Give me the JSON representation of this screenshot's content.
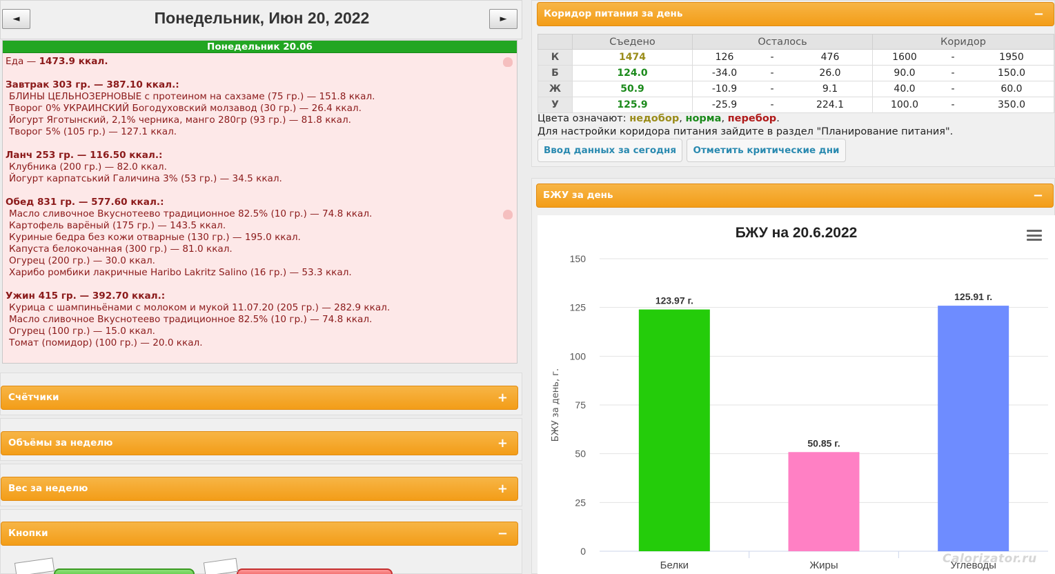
{
  "day": {
    "title": "Понедельник, Июн 20, 2022",
    "prev_label": "◄",
    "next_label": "►"
  },
  "diary": {
    "bar_label": "Понедельник 20.06",
    "lines": [
      {
        "kind": "total",
        "text": "Еда — ",
        "bold_text": "1473.9 ккал."
      },
      {
        "kind": "blank",
        "text": ""
      },
      {
        "kind": "meal",
        "text": "Завтрак 303 гр. — 387.10 ккал.:"
      },
      {
        "kind": "item",
        "text": "БЛИНЫ ЦЕЛЬНОЗЕРНОВЫЕ с протеином на сахзаме (75 гр.) — 151.8 ккал."
      },
      {
        "kind": "item",
        "text": "Творог 0% УКРАИНСКИЙ Богодуховский молзавод (30 гр.) — 26.4 ккал."
      },
      {
        "kind": "item",
        "text": "Йогурт Яготынский, 2,1% черника, манго 280гр (93 гр.) — 81.8 ккал."
      },
      {
        "kind": "item",
        "text": "Творог 5% (105 гр.) — 127.1 ккал."
      },
      {
        "kind": "blank",
        "text": ""
      },
      {
        "kind": "meal",
        "text": "Ланч 253 гр. — 116.50 ккал.:"
      },
      {
        "kind": "item",
        "text": "Клубника (200 гр.) — 82.0 ккал."
      },
      {
        "kind": "item",
        "text": "Йогурт карпатський Галичина 3% (53 гр.) — 34.5 ккал."
      },
      {
        "kind": "blank",
        "text": ""
      },
      {
        "kind": "meal",
        "text": "Обед 831 гр. — 577.60 ккал.:"
      },
      {
        "kind": "item",
        "text": "Масло сливочное Вкуснотеево традиционное 82.5% (10 гр.) — 74.8 ккал."
      },
      {
        "kind": "item",
        "text": "Картофель варёный (175 гр.) — 143.5 ккал."
      },
      {
        "kind": "item",
        "text": "Куриные бедра без кожи отварные (130 гр.) — 195.0 ккал."
      },
      {
        "kind": "item",
        "text": "Капуста белокочанная (300 гр.) — 81.0 ккал."
      },
      {
        "kind": "item",
        "text": "Огурец (200 гр.) — 30.0 ккал."
      },
      {
        "kind": "item",
        "text": "Харибо ромбики лакричные Haribo Lakritz Salino (16 гр.) — 53.3 ккал."
      },
      {
        "kind": "blank",
        "text": ""
      },
      {
        "kind": "meal",
        "text": "Ужин 415 гр. — 392.70 ккал.:"
      },
      {
        "kind": "item",
        "text": "Курица с шампиньёнами с молоком и мукой 11.07.20 (205 гр.) — 282.9 ккал."
      },
      {
        "kind": "item",
        "text": "Масло сливочное Вкуснотеево традиционное 82.5% (10 гр.) — 74.8 ккал."
      },
      {
        "kind": "item",
        "text": "Огурец (100 гр.) — 15.0 ккал."
      },
      {
        "kind": "item",
        "text": "Томат (помидор) (100 гр.) — 20.0 ккал."
      }
    ]
  },
  "left_panels": {
    "counters": {
      "label": "Счётчики",
      "toggle": "+"
    },
    "volumes": {
      "label": "Объёмы за неделю",
      "toggle": "+"
    },
    "weight": {
      "label": "Вес за неделю",
      "toggle": "+"
    },
    "buttons": {
      "label": "Кнопки",
      "toggle": "−"
    }
  },
  "corridor": {
    "panel_label": "Коридор питания за день",
    "toggle": "−",
    "headers": [
      "",
      "Съедено",
      "Осталось",
      "Коридор"
    ],
    "rows": [
      {
        "label": "К",
        "eaten": "1474",
        "eaten_color": "#9a8c1a",
        "left_from": "126",
        "left_to": "476",
        "corr_from": "1600",
        "corr_to": "1950"
      },
      {
        "label": "Б",
        "eaten": "124.0",
        "eaten_color": "#1b8a1b",
        "left_from": "-34.0",
        "left_to": "26.0",
        "corr_from": "90.0",
        "corr_to": "150.0"
      },
      {
        "label": "Ж",
        "eaten": "50.9",
        "eaten_color": "#1b8a1b",
        "left_from": "-10.9",
        "left_to": "9.1",
        "corr_from": "40.0",
        "corr_to": "60.0"
      },
      {
        "label": "У",
        "eaten": "125.9",
        "eaten_color": "#1b8a1b",
        "left_from": "-25.9",
        "left_to": "224.1",
        "corr_from": "100.0",
        "corr_to": "350.0"
      }
    ],
    "dash": "-",
    "legend_prefix": "Цвета означают: ",
    "legend_under": "недобор",
    "legend_norm": "норма",
    "legend_over": "перебор",
    "legend_sep": ", ",
    "legend_end": ".",
    "hint": "Для настройки коридора питания зайдите в раздел \"Планирование питания\".",
    "btn_today": "Ввод данных за сегодня",
    "btn_critical": "Отметить критические дни"
  },
  "bju": {
    "panel_label": "БЖУ за день",
    "toggle": "−"
  },
  "chart_data": {
    "type": "bar",
    "title": "БЖУ на 20.6.2022",
    "ylabel": "БЖУ за день, г.",
    "xlabel": "",
    "categories": [
      "Белки",
      "Жиры",
      "Углеводы"
    ],
    "values": [
      123.97,
      50.85,
      125.91
    ],
    "data_labels": [
      "123.97 г.",
      "50.85 г.",
      "125.91 г."
    ],
    "colors": [
      "#24cc0a",
      "#ff80c4",
      "#6e8cff"
    ],
    "ylim": [
      0,
      150
    ],
    "yticks": [
      0,
      25,
      50,
      75,
      100,
      125,
      150
    ],
    "grid": true
  },
  "watermark": "Calorizator.ru"
}
